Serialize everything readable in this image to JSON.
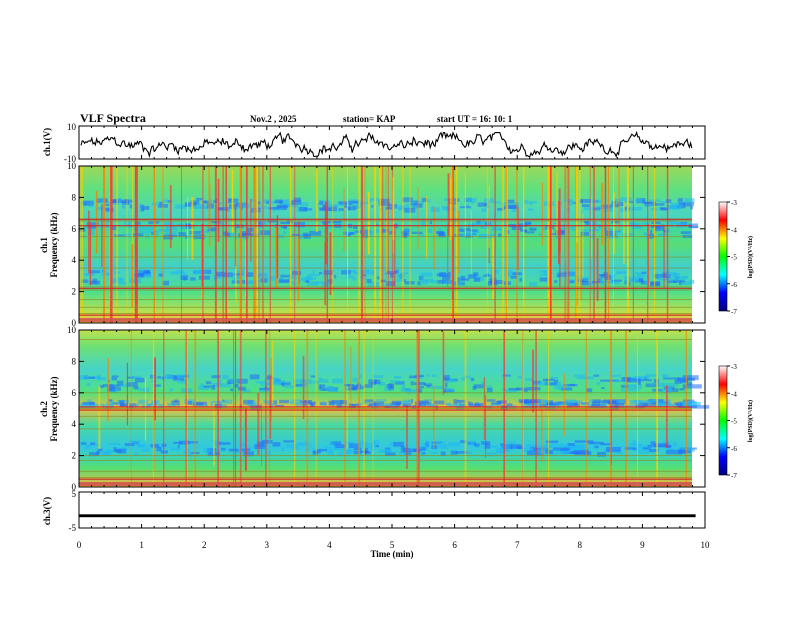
{
  "header": {
    "title": "VLF Spectra",
    "date": "Nov.2 , 2025",
    "station": "station= KAP",
    "start": "start UT = 16: 10: 1"
  },
  "colorbar": {
    "label": "log(PSD)(V²/Hz)",
    "ticks": [
      "-3",
      "-4",
      "-5",
      "-6",
      "-7"
    ],
    "colors": [
      "#ffffff",
      "#ff0000",
      "#ffff00",
      "#00ff00",
      "#00ffff",
      "#0000ff",
      "#000080"
    ]
  },
  "chart_data": [
    {
      "type": "line",
      "name": "ch1-waveform",
      "ylabel": "ch.1(V)",
      "ylim": [
        -10,
        10
      ],
      "yticks": [
        "10",
        "-10"
      ],
      "xlim": [
        0,
        9.85
      ],
      "note": "broadband waveform, roughly between -8 and +5 V"
    },
    {
      "type": "heatmap",
      "name": "ch1-spectrogram",
      "ylabel": "ch.1",
      "ylabel2": "Frequency (kHz)",
      "ylim": [
        0,
        10
      ],
      "yticks": [
        "0",
        "2",
        "4",
        "6",
        "8",
        "10"
      ],
      "xlim": [
        0,
        9.85
      ],
      "z_range": [
        -7,
        -3
      ],
      "bands_khz": [
        0.2,
        0.6,
        1.0,
        1.5,
        2.1,
        2.3,
        3.5,
        4.2,
        5.5,
        6.5
      ],
      "strong_bands_khz": [
        0.5,
        2.2,
        6.2,
        6.6
      ]
    },
    {
      "type": "heatmap",
      "name": "ch2-spectrogram",
      "ylabel": "ch.2",
      "ylabel2": "Frequency (kHz)",
      "ylim": [
        0,
        10
      ],
      "yticks": [
        "0",
        "2",
        "4",
        "6",
        "8",
        "10"
      ],
      "xlim": [
        0,
        9.85
      ],
      "z_range": [
        -7,
        -3
      ],
      "bands_khz": [
        0.2,
        0.6,
        1.0,
        1.7,
        2.0,
        3.7,
        4.5,
        5.0,
        6.0,
        9.4
      ],
      "strong_bands_khz": [
        0.5,
        4.9,
        5.1
      ]
    },
    {
      "type": "line",
      "name": "ch3-signal",
      "ylabel": "ch.3(V)",
      "ylim": [
        -5,
        5
      ],
      "yticks": [
        "5",
        "-5"
      ],
      "xlim": [
        0,
        9.85
      ],
      "x": [
        0,
        9.85
      ],
      "y_band": [
        -1.2,
        -2.0
      ],
      "xlabel": "Time (min)",
      "xticks": [
        "0",
        "1",
        "2",
        "3",
        "4",
        "5",
        "6",
        "7",
        "8",
        "9",
        "10"
      ]
    }
  ]
}
